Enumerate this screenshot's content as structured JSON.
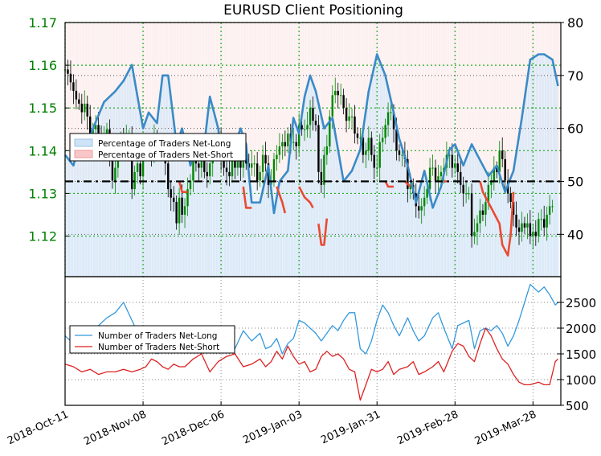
{
  "chart_data": {
    "type": "line",
    "title": "EURUSD Client Positioning",
    "x_tick_labels": [
      "2018-Oct-11",
      "2018-Nov-08",
      "2018-Dec-06",
      "2019-Jan-03",
      "2019-Jan-31",
      "2019-Feb-28",
      "2019-Mar-28"
    ],
    "x_range": [
      0,
      178
    ],
    "price_axis": {
      "ticks": [
        1.12,
        1.13,
        1.14,
        1.15,
        1.16,
        1.17
      ],
      "color": "#008000",
      "range": [
        1.1105,
        1.17
      ]
    },
    "percent_axis": {
      "ticks": [
        40,
        50,
        60,
        70,
        80
      ],
      "range": [
        32,
        80
      ]
    },
    "count_axis": {
      "ticks": [
        500,
        1000,
        1500,
        2000,
        2500
      ],
      "range": [
        500,
        3000
      ]
    },
    "grid": true,
    "reference_line_percent": 50,
    "legend_top": {
      "placement": "upper-left",
      "entries": [
        {
          "name": "Percentage of Traders Net-Long",
          "color": "#cfe3f6"
        },
        {
          "name": "Percentage of Traders Net-Short",
          "color": "#f8c6c6"
        }
      ]
    },
    "legend_bottom": {
      "placement": "center-left",
      "entries": [
        {
          "name": "Number of Traders Net-Long",
          "color": "#3399dd"
        },
        {
          "name": "Number of Traders Net-Short",
          "color": "#dd2222"
        }
      ]
    },
    "percent_net_long": {
      "x": [
        0,
        3,
        5,
        7,
        10,
        14,
        18,
        21,
        24,
        28,
        30,
        33,
        35,
        37,
        40,
        42,
        45,
        48,
        50,
        52,
        55,
        56,
        59,
        63,
        65,
        67,
        70,
        73,
        75,
        77,
        80,
        82,
        84,
        86,
        88,
        90,
        93,
        96,
        100,
        103,
        106,
        109,
        112,
        115,
        118,
        120,
        123,
        126,
        129,
        132,
        135,
        138,
        140,
        143,
        146,
        149,
        152,
        155,
        158,
        161,
        164,
        167,
        170,
        172,
        175,
        177
      ],
      "y": [
        55,
        53,
        57,
        55,
        60,
        65,
        67,
        69,
        72,
        60,
        63,
        61,
        70,
        70,
        57,
        60,
        53,
        58,
        57,
        66,
        60,
        56,
        54,
        60,
        57,
        46,
        46,
        53,
        44,
        50,
        52,
        62,
        59,
        66,
        70,
        67,
        60,
        62,
        50,
        52,
        56,
        67,
        74,
        70,
        63,
        58,
        53,
        46,
        52,
        45,
        49,
        56,
        57,
        53,
        57,
        54,
        51,
        53,
        48,
        52,
        62,
        73,
        74,
        74,
        73,
        68
      ]
    },
    "percent_net_short_segments": [
      {
        "x": [
          41,
          42,
          44
        ],
        "y": [
          50,
          48,
          48
        ]
      },
      {
        "x": [
          64,
          65,
          67
        ],
        "y": [
          49,
          45,
          45
        ]
      },
      {
        "x": [
          76,
          78,
          79
        ],
        "y": [
          49,
          46,
          44
        ]
      },
      {
        "x": [
          84,
          86,
          88,
          89
        ],
        "y": [
          49,
          47,
          46,
          45
        ]
      },
      {
        "x": [
          91,
          92,
          93,
          94
        ],
        "y": [
          42,
          38,
          38,
          43
        ]
      },
      {
        "x": [
          115,
          116,
          118
        ],
        "y": [
          50,
          49,
          49
        ]
      },
      {
        "x": [
          122,
          124
        ],
        "y": [
          50,
          49
        ]
      },
      {
        "x": [
          127,
          128
        ],
        "y": [
          50,
          50
        ]
      },
      {
        "x": [
          136,
          137
        ],
        "y": [
          50,
          50
        ]
      },
      {
        "x": [
          149,
          150,
          152,
          154,
          156,
          157,
          159,
          160,
          161
        ],
        "y": [
          50,
          48,
          46,
          44,
          42,
          38,
          36,
          40,
          48
        ]
      }
    ],
    "candles": {
      "close": [
        1.159,
        1.158,
        1.156,
        1.154,
        1.152,
        1.151,
        1.149,
        1.151,
        1.148,
        1.144,
        1.145,
        1.146,
        1.144,
        1.141,
        1.143,
        1.145,
        1.139,
        1.133,
        1.136,
        1.14,
        1.143,
        1.141,
        1.143,
        1.143,
        1.131,
        1.135,
        1.137,
        1.134,
        1.14,
        1.14,
        1.141,
        1.139,
        1.143,
        1.141,
        1.14,
        1.141,
        1.137,
        1.131,
        1.129,
        1.128,
        1.123,
        1.129,
        1.125,
        1.127,
        1.131,
        1.133,
        1.138,
        1.137,
        1.136,
        1.139,
        1.135,
        1.134,
        1.137,
        1.14,
        1.141,
        1.143,
        1.138,
        1.136,
        1.135,
        1.134,
        1.138,
        1.136,
        1.139,
        1.136,
        1.138,
        1.137,
        1.136,
        1.137,
        1.137,
        1.133,
        1.135,
        1.139,
        1.137,
        1.132,
        1.133,
        1.138,
        1.139,
        1.141,
        1.142,
        1.141,
        1.144,
        1.142,
        1.142,
        1.141,
        1.146,
        1.145,
        1.145,
        1.146,
        1.15,
        1.147,
        1.146,
        1.135,
        1.132,
        1.139,
        1.141,
        1.148,
        1.153,
        1.154,
        1.153,
        1.153,
        1.15,
        1.147,
        1.148,
        1.148,
        1.144,
        1.143,
        1.143,
        1.139,
        1.14,
        1.143,
        1.139,
        1.136,
        1.136,
        1.142,
        1.143,
        1.146,
        1.149,
        1.149,
        1.145,
        1.14,
        1.139,
        1.139,
        1.138,
        1.131,
        1.132,
        1.13,
        1.127,
        1.126,
        1.127,
        1.129,
        1.131,
        1.136,
        1.136,
        1.133,
        1.134,
        1.135,
        1.136,
        1.139,
        1.139,
        1.136,
        1.137,
        1.135,
        1.132,
        1.13,
        1.13,
        1.13,
        1.12,
        1.121,
        1.123,
        1.126,
        1.125,
        1.128,
        1.132,
        1.133,
        1.136,
        1.135,
        1.14,
        1.138,
        1.133,
        1.13,
        1.128,
        1.125,
        1.122,
        1.121,
        1.123,
        1.122,
        1.123,
        1.12,
        1.121,
        1.12,
        1.124,
        1.124,
        1.122,
        1.125,
        1.127,
        1.127
      ]
    },
    "count_net_long": {
      "x": [
        0,
        3,
        6,
        9,
        12,
        15,
        18,
        21,
        24,
        27,
        29,
        31,
        33,
        35,
        37,
        39,
        41,
        43,
        46,
        49,
        52,
        55,
        58,
        61,
        64,
        67,
        70,
        72,
        74,
        76,
        78,
        80,
        82,
        84,
        86,
        88,
        90,
        92,
        94,
        96,
        98,
        100,
        102,
        104,
        106,
        108,
        110,
        112,
        114,
        116,
        118,
        120,
        123,
        125,
        127,
        129,
        132,
        134,
        136,
        139,
        141,
        143,
        145,
        147,
        149,
        151,
        153,
        155,
        157,
        159,
        161,
        163,
        165,
        167,
        170,
        172,
        174,
        176,
        177
      ],
      "y": [
        1850,
        1700,
        1800,
        1900,
        2050,
        2200,
        2300,
        2500,
        2150,
        1800,
        1900,
        1700,
        1500,
        1600,
        1650,
        1700,
        1550,
        1650,
        1750,
        1500,
        1800,
        1750,
        1800,
        1600,
        1950,
        1750,
        1900,
        1600,
        1650,
        1800,
        1500,
        1700,
        1800,
        2150,
        2100,
        2000,
        1900,
        1750,
        1900,
        2050,
        1950,
        2150,
        2300,
        2300,
        1600,
        1500,
        1750,
        2150,
        2450,
        2300,
        2050,
        1850,
        2200,
        1950,
        1750,
        1850,
        2200,
        2300,
        2000,
        1600,
        2050,
        2100,
        2150,
        1600,
        1950,
        2000,
        1950,
        2050,
        1900,
        1650,
        1850,
        2150,
        2500,
        2850,
        2700,
        2800,
        2650,
        2450,
        2500
      ]
    },
    "count_net_short": {
      "x": [
        0,
        3,
        6,
        9,
        12,
        15,
        18,
        21,
        24,
        27,
        29,
        31,
        33,
        35,
        37,
        39,
        41,
        43,
        46,
        49,
        52,
        55,
        58,
        61,
        64,
        67,
        70,
        72,
        74,
        76,
        78,
        80,
        82,
        84,
        86,
        88,
        90,
        92,
        94,
        96,
        98,
        100,
        102,
        104,
        106,
        108,
        110,
        112,
        114,
        116,
        118,
        120,
        123,
        125,
        127,
        129,
        132,
        134,
        136,
        139,
        141,
        143,
        145,
        147,
        149,
        151,
        153,
        155,
        157,
        159,
        161,
        163,
        165,
        167,
        170,
        172,
        174,
        176,
        177
      ],
      "y": [
        1300,
        1250,
        1150,
        1200,
        1100,
        1150,
        1150,
        1200,
        1150,
        1200,
        1250,
        1400,
        1350,
        1250,
        1200,
        1300,
        1250,
        1250,
        1400,
        1500,
        1150,
        1350,
        1450,
        1500,
        1250,
        1300,
        1400,
        1250,
        1350,
        1550,
        1400,
        1650,
        1450,
        1300,
        1350,
        1150,
        1200,
        1450,
        1550,
        1450,
        1500,
        1400,
        1200,
        1150,
        600,
        900,
        1200,
        1150,
        1200,
        1350,
        1100,
        1200,
        1250,
        1350,
        1100,
        1150,
        1250,
        1350,
        1150,
        1550,
        1700,
        1650,
        1450,
        1350,
        1700,
        2000,
        1850,
        1600,
        1400,
        1300,
        1100,
        950,
        900,
        900,
        950,
        900,
        900,
        1350,
        1400
      ]
    }
  }
}
